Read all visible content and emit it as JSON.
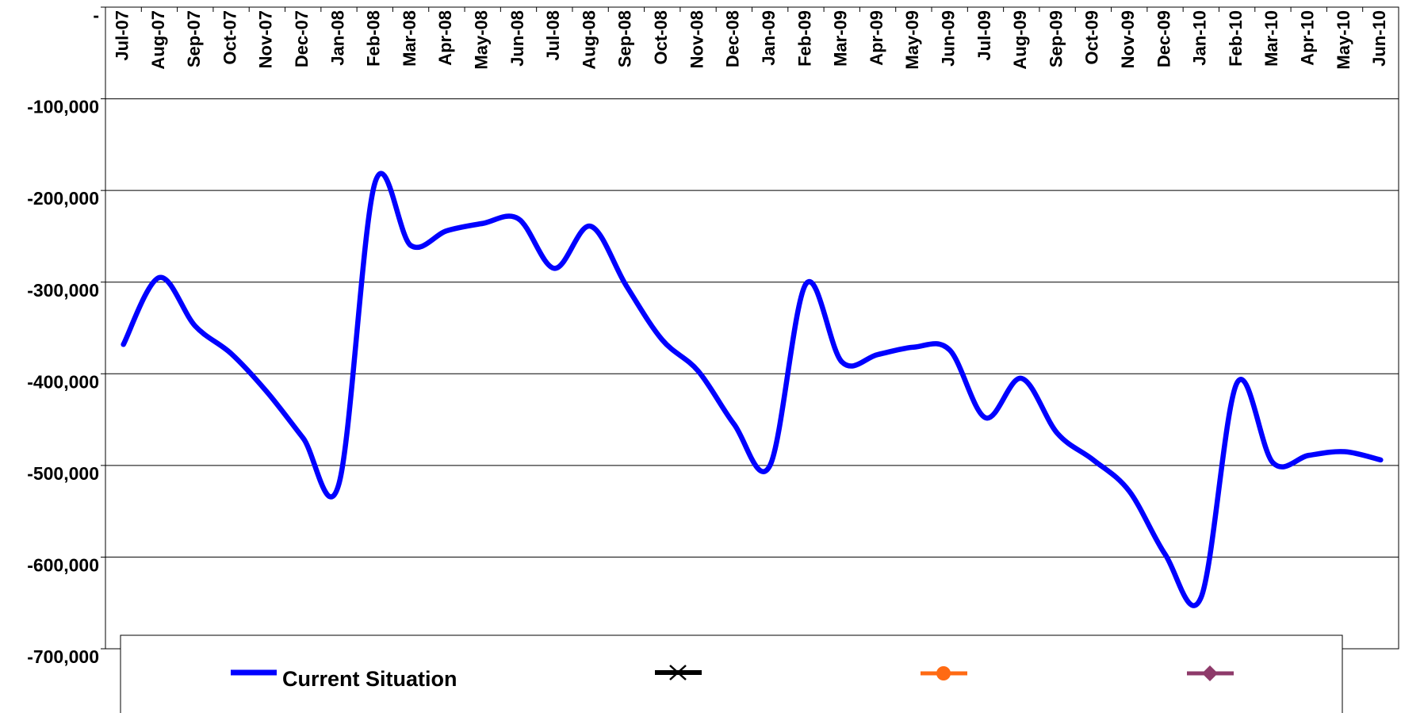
{
  "chart_data": {
    "type": "line",
    "categories": [
      "Jul-07",
      "Aug-07",
      "Sep-07",
      "Oct-07",
      "Nov-07",
      "Dec-07",
      "Jan-08",
      "Feb-08",
      "Mar-08",
      "Apr-08",
      "May-08",
      "Jun-08",
      "Jul-08",
      "Aug-08",
      "Sep-08",
      "Oct-08",
      "Nov-08",
      "Dec-08",
      "Jan-09",
      "Feb-09",
      "Mar-09",
      "Apr-09",
      "May-09",
      "Jun-09",
      "Jul-09",
      "Aug-09",
      "Sep-09",
      "Oct-09",
      "Nov-09",
      "Dec-09",
      "Jan-10",
      "Feb-10",
      "Mar-10",
      "Apr-10",
      "May-10",
      "Jun-10"
    ],
    "series": [
      {
        "name": "Current Situation",
        "color": "#0000ff",
        "values": [
          -368000,
          -295000,
          -348000,
          -378000,
          -420000,
          -470000,
          -520000,
          -192000,
          -260000,
          -244000,
          -236000,
          -231000,
          -285000,
          -239000,
          -304000,
          -363000,
          -397000,
          -455000,
          -500000,
          -302000,
          -387000,
          -379000,
          -371000,
          -374000,
          -448000,
          -405000,
          -465000,
          -494000,
          -528000,
          -597000,
          -644000,
          -410000,
          -497000,
          -489000,
          -485000,
          -494000
        ]
      }
    ],
    "ylim": [
      -700000,
      0
    ],
    "yticks": [
      {
        "value": 0,
        "label": "-"
      },
      {
        "value": -100000,
        "label": "-100,000"
      },
      {
        "value": -200000,
        "label": "-200,000"
      },
      {
        "value": -300000,
        "label": "-300,000"
      },
      {
        "value": -400000,
        "label": "-400,000"
      },
      {
        "value": -500000,
        "label": "-500,000"
      },
      {
        "value": -600000,
        "label": "-600,000"
      },
      {
        "value": -700000,
        "label": "-700,000"
      }
    ],
    "grid": true
  }
}
